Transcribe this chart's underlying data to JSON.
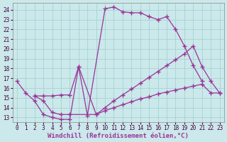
{
  "background_color": "#cbe8ea",
  "grid_color": "#9ecfcf",
  "line_color": "#993399",
  "marker": "+",
  "marker_size": 4,
  "marker_lw": 1.0,
  "xlabel": "Windchill (Refroidissement éolien,°C)",
  "xlabel_fontsize": 6.5,
  "ylim": [
    12.5,
    24.7
  ],
  "xlim": [
    -0.5,
    23.5
  ],
  "yticks": [
    13,
    14,
    15,
    16,
    17,
    18,
    19,
    20,
    21,
    22,
    23,
    24
  ],
  "xticks": [
    0,
    1,
    2,
    3,
    4,
    5,
    6,
    7,
    8,
    9,
    10,
    11,
    12,
    13,
    14,
    15,
    16,
    17,
    18,
    19,
    20,
    21,
    22,
    23
  ],
  "tick_fontsize": 5.5,
  "series1_x": [
    0,
    1,
    2,
    3,
    4,
    5,
    6,
    7,
    8,
    10,
    11,
    12,
    13,
    14,
    15,
    16,
    17,
    18,
    19,
    20,
    21
  ],
  "series1_y": [
    16.7,
    15.5,
    14.7,
    13.3,
    13.0,
    12.8,
    12.8,
    18.2,
    13.2,
    24.1,
    24.3,
    23.8,
    23.7,
    23.7,
    23.3,
    23.0,
    23.3,
    22.0,
    20.3,
    18.3,
    16.7
  ],
  "series2_x": [
    2,
    3,
    4,
    5,
    6,
    7,
    9,
    10,
    11,
    12,
    13,
    14,
    15,
    16,
    17,
    18,
    19,
    20,
    21,
    22,
    23
  ],
  "series2_y": [
    15.2,
    15.2,
    15.2,
    15.3,
    15.3,
    18.2,
    13.3,
    14.0,
    14.7,
    15.3,
    15.9,
    16.5,
    17.1,
    17.7,
    18.3,
    18.9,
    19.5,
    20.3,
    18.2,
    16.7,
    15.5
  ],
  "series3_x": [
    2,
    3,
    4,
    5,
    6,
    9,
    10,
    11,
    12,
    13,
    14,
    15,
    16,
    17,
    18,
    19,
    20,
    21,
    22,
    23
  ],
  "series3_y": [
    15.2,
    14.7,
    13.5,
    13.3,
    13.3,
    13.3,
    13.7,
    14.0,
    14.3,
    14.6,
    14.9,
    15.1,
    15.4,
    15.6,
    15.8,
    16.0,
    16.2,
    16.4,
    15.5,
    15.5
  ]
}
